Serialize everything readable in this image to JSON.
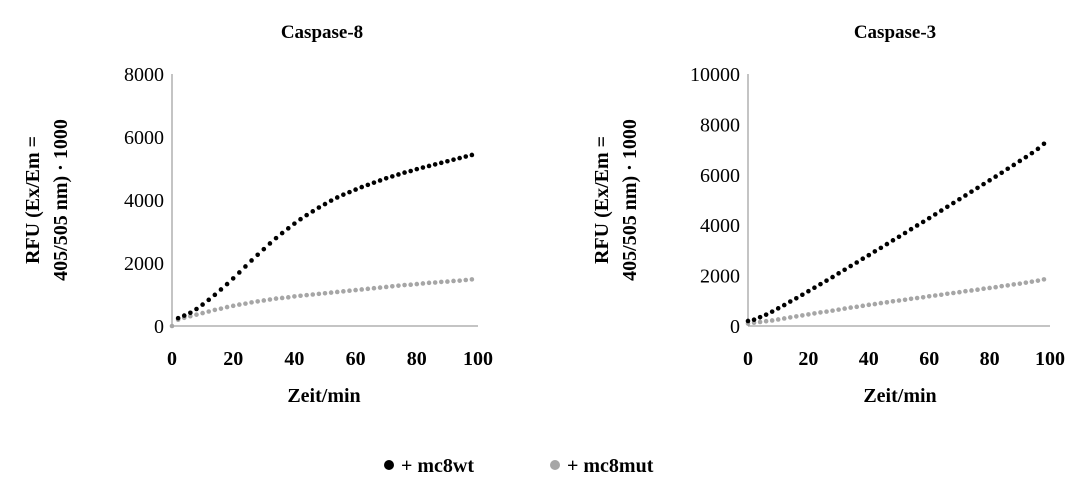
{
  "charts": [
    {
      "title": "Caspase-8",
      "xlabel": "Zeit/min",
      "ylabel_lines": [
        "RFU (Ex/Em =",
        "405/505 nm) · 1000"
      ],
      "xlim": [
        0,
        100
      ],
      "ylim": [
        0,
        8000
      ],
      "xticks": [
        "0",
        "20",
        "40",
        "60",
        "80",
        "100"
      ],
      "yticks": [
        "0",
        "2000",
        "4000",
        "6000",
        "8000"
      ]
    },
    {
      "title": "Caspase-3",
      "xlabel": "Zeit/min",
      "ylabel_lines": [
        "RFU (Ex/Em =",
        "405/505 nm) · 1000"
      ],
      "xlim": [
        0,
        100
      ],
      "ylim": [
        0,
        10000
      ],
      "xticks": [
        "0",
        "20",
        "40",
        "60",
        "80",
        "100"
      ],
      "yticks": [
        "0",
        "2000",
        "4000",
        "6000",
        "8000",
        "10000"
      ]
    }
  ],
  "legend": {
    "placement": "bottom-center",
    "items": [
      {
        "label": "+ mc8wt",
        "color": "#000000",
        "icon": "black-dot-marker"
      },
      {
        "label": "+ mc8mut",
        "color": "#a6a6a6",
        "icon": "gray-dot-marker"
      }
    ]
  },
  "chart_data": [
    {
      "type": "scatter",
      "title": "Caspase-8",
      "xlabel": "Zeit/min",
      "ylabel": "RFU (Ex/Em = 405/505 nm) · 1000",
      "xlim": [
        0,
        100
      ],
      "ylim": [
        0,
        8000
      ],
      "grid": false,
      "legend": "bottom-center",
      "series": [
        {
          "name": "+ mc8wt",
          "color": "#000000",
          "x": [
            2,
            4,
            6,
            8,
            10,
            12,
            14,
            16,
            18,
            20,
            22,
            24,
            26,
            28,
            30,
            32,
            34,
            36,
            38,
            40,
            42,
            44,
            46,
            48,
            50,
            52,
            54,
            56,
            58,
            60,
            62,
            64,
            66,
            68,
            70,
            72,
            74,
            76,
            78,
            80,
            82,
            84,
            86,
            88,
            90,
            92,
            94,
            96,
            98
          ],
          "y": [
            250,
            330,
            420,
            540,
            680,
            830,
            990,
            1160,
            1330,
            1510,
            1700,
            1890,
            2080,
            2260,
            2440,
            2620,
            2790,
            2950,
            3100,
            3250,
            3390,
            3520,
            3640,
            3760,
            3870,
            3980,
            4080,
            4170,
            4250,
            4330,
            4410,
            4480,
            4550,
            4620,
            4690,
            4750,
            4810,
            4870,
            4920,
            4980,
            5030,
            5080,
            5130,
            5180,
            5230,
            5280,
            5330,
            5380,
            5430
          ]
        },
        {
          "name": "+ mc8mut",
          "color": "#a6a6a6",
          "x": [
            0,
            2,
            4,
            6,
            8,
            10,
            12,
            14,
            16,
            18,
            20,
            22,
            24,
            26,
            28,
            30,
            32,
            34,
            36,
            38,
            40,
            42,
            44,
            46,
            48,
            50,
            52,
            54,
            56,
            58,
            60,
            62,
            64,
            66,
            68,
            70,
            72,
            74,
            76,
            78,
            80,
            82,
            84,
            86,
            88,
            90,
            92,
            94,
            96,
            98
          ],
          "y": [
            0,
            200,
            260,
            310,
            360,
            410,
            460,
            510,
            550,
            600,
            640,
            680,
            710,
            750,
            780,
            810,
            840,
            870,
            890,
            910,
            940,
            960,
            980,
            1000,
            1020,
            1040,
            1060,
            1080,
            1100,
            1120,
            1140,
            1160,
            1180,
            1200,
            1220,
            1240,
            1260,
            1280,
            1300,
            1310,
            1330,
            1350,
            1370,
            1380,
            1400,
            1410,
            1430,
            1440,
            1460,
            1480
          ]
        }
      ]
    },
    {
      "type": "scatter",
      "title": "Caspase-3",
      "xlabel": "Zeit/min",
      "ylabel": "RFU (Ex/Em = 405/505 nm) · 1000",
      "xlim": [
        0,
        100
      ],
      "ylim": [
        0,
        10000
      ],
      "grid": false,
      "legend": "bottom-center",
      "series": [
        {
          "name": "+ mc8wt",
          "color": "#000000",
          "x": [
            0,
            2,
            4,
            6,
            8,
            10,
            12,
            14,
            16,
            18,
            20,
            22,
            24,
            26,
            28,
            30,
            32,
            34,
            36,
            38,
            40,
            42,
            44,
            46,
            48,
            50,
            52,
            54,
            56,
            58,
            60,
            62,
            64,
            66,
            68,
            70,
            72,
            74,
            76,
            78,
            80,
            82,
            84,
            86,
            88,
            90,
            92,
            94,
            96,
            98
          ],
          "y": [
            200,
            250,
            350,
            450,
            570,
            700,
            830,
            970,
            1100,
            1240,
            1380,
            1520,
            1660,
            1800,
            1940,
            2090,
            2230,
            2380,
            2520,
            2670,
            2810,
            2960,
            3100,
            3250,
            3400,
            3540,
            3690,
            3840,
            3990,
            4130,
            4280,
            4430,
            4580,
            4730,
            4880,
            5030,
            5180,
            5330,
            5480,
            5630,
            5780,
            5930,
            6080,
            6240,
            6390,
            6550,
            6700,
            6860,
            7030,
            7230
          ]
        },
        {
          "name": "+ mc8mut",
          "color": "#a6a6a6",
          "x": [
            0,
            2,
            4,
            6,
            8,
            10,
            12,
            14,
            16,
            18,
            20,
            22,
            24,
            26,
            28,
            30,
            32,
            34,
            36,
            38,
            40,
            42,
            44,
            46,
            48,
            50,
            52,
            54,
            56,
            58,
            60,
            62,
            64,
            66,
            68,
            70,
            72,
            74,
            76,
            78,
            80,
            82,
            84,
            86,
            88,
            90,
            92,
            94,
            96,
            98
          ],
          "y": [
            100,
            130,
            160,
            190,
            220,
            260,
            300,
            340,
            380,
            420,
            460,
            500,
            540,
            570,
            610,
            650,
            690,
            730,
            760,
            800,
            840,
            870,
            910,
            940,
            980,
            1010,
            1040,
            1080,
            1110,
            1140,
            1180,
            1210,
            1240,
            1280,
            1310,
            1340,
            1380,
            1410,
            1440,
            1480,
            1510,
            1540,
            1580,
            1610,
            1650,
            1680,
            1720,
            1760,
            1800,
            1850
          ]
        }
      ]
    }
  ]
}
